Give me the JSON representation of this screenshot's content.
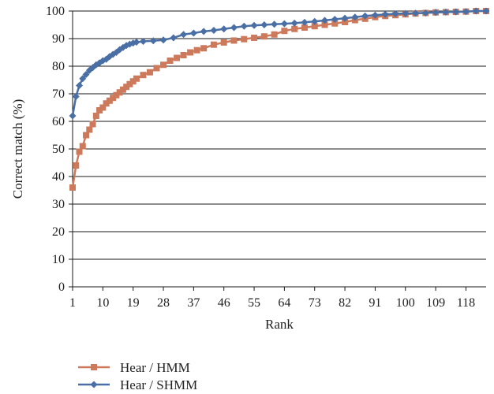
{
  "chart_data": {
    "type": "line",
    "title": "",
    "xlabel": "Rank",
    "ylabel": "Correct match (%)",
    "xlim": [
      1,
      124
    ],
    "ylim": [
      0,
      100
    ],
    "x_ticks": [
      1,
      10,
      19,
      28,
      37,
      46,
      55,
      64,
      73,
      82,
      91,
      100,
      109,
      118
    ],
    "y_ticks": [
      0,
      10,
      20,
      30,
      40,
      50,
      60,
      70,
      80,
      90,
      100
    ],
    "grid": true,
    "legend_position": "bottom-left",
    "series": [
      {
        "name": "Hear / HMM",
        "color": "#cd7a5c",
        "marker": "square",
        "points": [
          [
            1,
            36
          ],
          [
            2,
            44
          ],
          [
            3,
            49
          ],
          [
            4,
            51
          ],
          [
            5,
            55
          ],
          [
            6,
            57
          ],
          [
            7,
            59
          ],
          [
            8,
            62
          ],
          [
            9,
            64
          ],
          [
            10,
            65
          ],
          [
            11,
            66.5
          ],
          [
            12,
            67.5
          ],
          [
            13,
            68.5
          ],
          [
            14,
            69.5
          ],
          [
            15,
            70.5
          ],
          [
            16,
            71.5
          ],
          [
            17,
            72.5
          ],
          [
            18,
            73.5
          ],
          [
            19,
            74.5
          ],
          [
            20,
            75.5
          ],
          [
            22,
            76.8
          ],
          [
            24,
            77.8
          ],
          [
            26,
            79.3
          ],
          [
            28,
            80.5
          ],
          [
            30,
            82
          ],
          [
            32,
            83
          ],
          [
            34,
            84
          ],
          [
            36,
            85
          ],
          [
            38,
            85.8
          ],
          [
            40,
            86.5
          ],
          [
            43,
            87.8
          ],
          [
            46,
            88.6
          ],
          [
            49,
            89.3
          ],
          [
            52,
            89.8
          ],
          [
            55,
            90.3
          ],
          [
            58,
            90.8
          ],
          [
            61,
            91.5
          ],
          [
            64,
            92.8
          ],
          [
            67,
            93.5
          ],
          [
            70,
            94
          ],
          [
            73,
            94.5
          ],
          [
            76,
            95
          ],
          [
            79,
            95.5
          ],
          [
            82,
            96
          ],
          [
            85,
            96.7
          ],
          [
            88,
            97.2
          ],
          [
            91,
            97.8
          ],
          [
            94,
            98.2
          ],
          [
            97,
            98.5
          ],
          [
            100,
            98.8
          ],
          [
            103,
            99.1
          ],
          [
            106,
            99.3
          ],
          [
            109,
            99.5
          ],
          [
            112,
            99.6
          ],
          [
            115,
            99.7
          ],
          [
            118,
            99.8
          ],
          [
            121,
            100
          ],
          [
            124,
            100
          ]
        ]
      },
      {
        "name": "Hear / SHMM",
        "color": "#4a6fa5",
        "marker": "diamond",
        "points": [
          [
            1,
            62
          ],
          [
            2,
            69
          ],
          [
            3,
            73
          ],
          [
            4,
            75.5
          ],
          [
            5,
            77
          ],
          [
            6,
            78.5
          ],
          [
            7,
            79.5
          ],
          [
            8,
            80.5
          ],
          [
            9,
            81.2
          ],
          [
            10,
            82
          ],
          [
            11,
            82.5
          ],
          [
            12,
            83.5
          ],
          [
            13,
            84.3
          ],
          [
            14,
            85
          ],
          [
            15,
            86
          ],
          [
            16,
            86.8
          ],
          [
            17,
            87.5
          ],
          [
            18,
            88
          ],
          [
            19,
            88.4
          ],
          [
            20,
            88.7
          ],
          [
            22,
            89
          ],
          [
            25,
            89.2
          ],
          [
            28,
            89.5
          ],
          [
            31,
            90.3
          ],
          [
            34,
            91.5
          ],
          [
            37,
            92
          ],
          [
            40,
            92.6
          ],
          [
            43,
            93
          ],
          [
            46,
            93.5
          ],
          [
            49,
            94
          ],
          [
            52,
            94.5
          ],
          [
            55,
            94.8
          ],
          [
            58,
            95
          ],
          [
            61,
            95.2
          ],
          [
            64,
            95.4
          ],
          [
            67,
            95.6
          ],
          [
            70,
            95.9
          ],
          [
            73,
            96.2
          ],
          [
            76,
            96.6
          ],
          [
            79,
            97
          ],
          [
            82,
            97.4
          ],
          [
            85,
            97.8
          ],
          [
            88,
            98.2
          ],
          [
            91,
            98.5
          ],
          [
            94,
            98.8
          ],
          [
            97,
            99
          ],
          [
            100,
            99.1
          ],
          [
            103,
            99.2
          ],
          [
            106,
            99.3
          ],
          [
            109,
            99.5
          ],
          [
            112,
            99.6
          ],
          [
            115,
            99.7
          ],
          [
            118,
            99.8
          ],
          [
            121,
            100
          ],
          [
            124,
            100
          ]
        ]
      }
    ]
  }
}
